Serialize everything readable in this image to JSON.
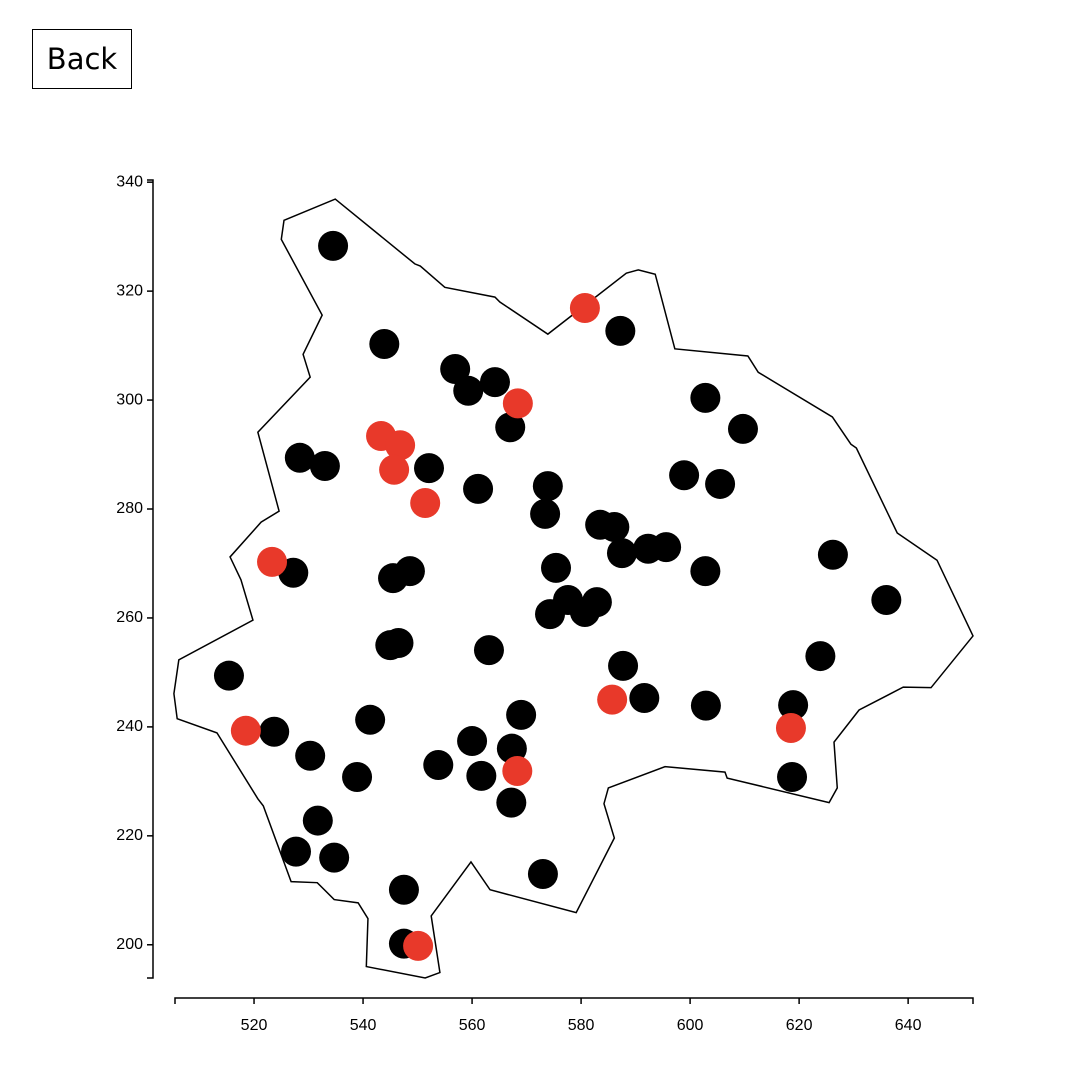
{
  "back_button": "Back",
  "chart_data": {
    "type": "scatter",
    "xlim": [
      505.5,
      651.9
    ],
    "xticks": [
      520,
      540,
      560,
      580,
      600,
      620,
      640
    ],
    "ylim": [
      193.9,
      340.4
    ],
    "yticks": [
      200,
      220,
      240,
      260,
      280,
      300,
      320,
      340
    ],
    "boundary": {
      "x": [
        525.5,
        534.9,
        549.5,
        550.5,
        555.0,
        564.2,
        565.1,
        573.9,
        588.3,
        590.5,
        593.6,
        597.2,
        610.6,
        612.5,
        626.1,
        629.5,
        630.5,
        638.0,
        645.3,
        651.9,
        644.2,
        639.1,
        631.0,
        626.4,
        627.0,
        625.5,
        606.8,
        606.4,
        595.4,
        585.0,
        584.2,
        586.1,
        579.1,
        563.3,
        559.8,
        552.5,
        554.1,
        551.4,
        540.6,
        540.9,
        539.1,
        534.7,
        531.6,
        526.8,
        521.7,
        520.7,
        513.2,
        505.9,
        505.3,
        506.2,
        519.8,
        517.6,
        515.6,
        521.3,
        524.6,
        520.7,
        530.3,
        529.0,
        532.5,
        525.0
      ],
      "y": [
        333.0,
        336.9,
        325.0,
        324.6,
        320.7,
        318.9,
        318.0,
        312.1,
        323.3,
        323.9,
        323.1,
        309.4,
        308.1,
        305.1,
        296.9,
        291.9,
        291.2,
        275.6,
        270.6,
        256.7,
        247.2,
        247.3,
        243.1,
        237.2,
        228.8,
        226.1,
        230.6,
        231.7,
        232.7,
        228.8,
        225.9,
        219.6,
        205.9,
        210.1,
        215.2,
        205.3,
        194.9,
        193.9,
        196.0,
        204.8,
        207.7,
        208.3,
        211.4,
        211.6,
        225.5,
        226.8,
        238.9,
        241.5,
        246.1,
        252.3,
        259.6,
        267.0,
        271.2,
        277.6,
        279.6,
        294.1,
        304.2,
        308.4,
        315.6,
        329.5
      ]
    },
    "series": [
      {
        "color": "#000000",
        "x": [
          534.5,
          543.9,
          556.9,
          559.3,
          564.2,
          567.0,
          587.2,
          602.8,
          609.7,
          528.4,
          533.0,
          552.1,
          561.1,
          573.9,
          573.4,
          583.5,
          586.1,
          587.5,
          592.3,
          595.6,
          598.9,
          605.5,
          602.8,
          626.2,
          636.0,
          527.2,
          545.5,
          548.6,
          575.4,
          577.6,
          574.3,
          580.7,
          582.9,
          545.0,
          546.5,
          563.1,
          587.7,
          591.6,
          515.4,
          523.7,
          541.3,
          530.3,
          560.0,
          569.0,
          567.3,
          561.7,
          553.8,
          538.9,
          567.2,
          602.9,
          618.9,
          618.7,
          623.9,
          531.7,
          527.7,
          534.7,
          547.5,
          573.0,
          547.5
        ],
        "y": [
          328.3,
          310.3,
          305.7,
          301.7,
          303.3,
          295.0,
          312.7,
          300.4,
          294.7,
          289.4,
          287.9,
          287.5,
          283.7,
          284.2,
          279.1,
          277.1,
          276.7,
          271.9,
          272.7,
          273.0,
          286.2,
          284.6,
          268.6,
          271.6,
          263.3,
          268.3,
          267.3,
          268.6,
          269.2,
          263.3,
          260.7,
          261.1,
          262.9,
          255.0,
          255.4,
          254.1,
          251.2,
          245.3,
          249.4,
          239.1,
          241.3,
          234.7,
          237.4,
          242.2,
          236.0,
          231.0,
          233.0,
          230.8,
          226.1,
          243.9,
          244.0,
          230.8,
          253.0,
          222.8,
          217.1,
          216.0,
          210.1,
          213.0,
          200.2
        ]
      },
      {
        "color": "#e8392a",
        "x": [
          580.7,
          568.4,
          543.3,
          546.8,
          545.7,
          551.4,
          523.3,
          518.5,
          585.7,
          568.3,
          618.5,
          550.1
        ],
        "y": [
          316.9,
          299.4,
          293.4,
          291.7,
          287.2,
          281.1,
          270.3,
          239.3,
          245.0,
          231.9,
          239.8,
          199.8
        ]
      }
    ]
  }
}
